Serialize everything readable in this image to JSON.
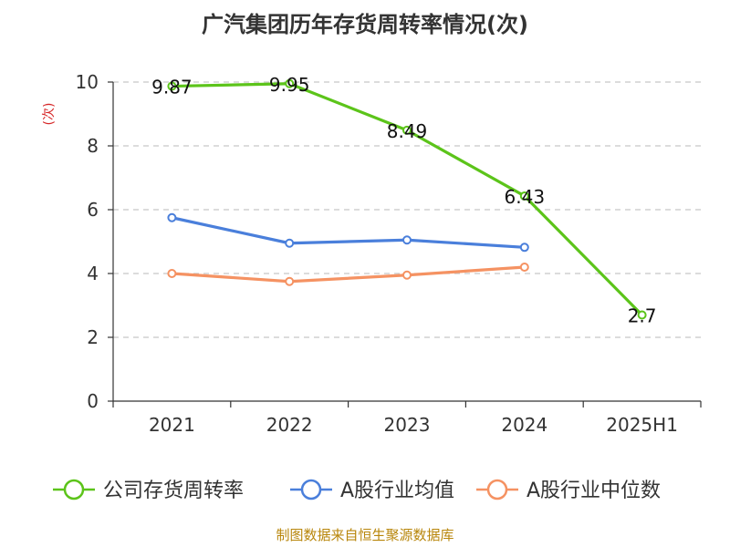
{
  "chart_data": {
    "type": "line",
    "title": "广汽集团历年存货周转率情况(次)",
    "ylabel": "(次)",
    "xlabel": "",
    "categories": [
      "2021",
      "2022",
      "2023",
      "2024",
      "2025H1"
    ],
    "ylim": [
      0,
      10
    ],
    "yticks": [
      0,
      2,
      4,
      6,
      8,
      10
    ],
    "grid": true,
    "legend_position": "bottom",
    "series": [
      {
        "name": "公司存货周转率",
        "color": "#5cc41a",
        "values": [
          9.87,
          9.95,
          8.49,
          6.43,
          2.7
        ],
        "labels": [
          "9.87",
          "9.95",
          "8.49",
          "6.43",
          "2.7"
        ]
      },
      {
        "name": "A股行业均值",
        "color": "#4a7fdb",
        "values": [
          5.75,
          4.95,
          5.05,
          4.82,
          null
        ]
      },
      {
        "name": "A股行业中位数",
        "color": "#f59262",
        "values": [
          4.0,
          3.75,
          3.95,
          4.2,
          null
        ]
      }
    ]
  },
  "source": "制图数据来自恒生聚源数据库"
}
